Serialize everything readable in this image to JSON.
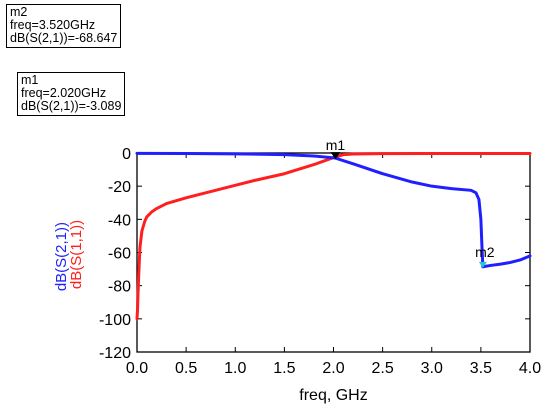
{
  "markers": [
    {
      "name": "m2",
      "freq_text": "freq=3.520GHz",
      "value_text": "dB(S(2,1))=-68.647"
    },
    {
      "name": "m1",
      "freq_text": "freq=2.020GHz",
      "value_text": "dB(S(2,1))=-3.089"
    }
  ],
  "chart_data": {
    "type": "line",
    "xlabel": "freq, GHz",
    "ylabel_parts": [
      "dB(S(2,1))",
      "dB(S(1,1))"
    ],
    "xlim": [
      0.0,
      4.0
    ],
    "ylim": [
      -120,
      0
    ],
    "x_ticks": [
      "0.0",
      "0.5",
      "1.0",
      "1.5",
      "2.0",
      "2.5",
      "3.0",
      "3.5",
      "4.0"
    ],
    "y_ticks": [
      "0",
      "-20",
      "-40",
      "-60",
      "-80",
      "-100",
      "-120"
    ],
    "grid": false,
    "series": [
      {
        "name": "dB(S(2,1))",
        "color": "#1f1fff",
        "x": [
          0.0,
          0.5,
          1.0,
          1.5,
          1.8,
          2.0,
          2.02,
          2.2,
          2.5,
          2.8,
          3.0,
          3.2,
          3.4,
          3.45,
          3.48,
          3.5,
          3.51,
          3.52,
          3.55,
          3.6,
          3.7,
          3.8,
          3.9,
          4.0
        ],
        "y": [
          -0.2,
          -0.3,
          -0.5,
          -1.0,
          -1.8,
          -2.9,
          -3.089,
          -6.5,
          -12.5,
          -17.5,
          -20.0,
          -21.5,
          -22.5,
          -24.0,
          -28.0,
          -40.0,
          -55.0,
          -68.647,
          -68.3,
          -67.8,
          -67.0,
          -66.0,
          -64.5,
          -62.0
        ]
      },
      {
        "name": "dB(S(1,1))",
        "color": "#ff1f1f",
        "x": [
          0.0,
          0.005,
          0.01,
          0.02,
          0.03,
          0.05,
          0.08,
          0.1,
          0.15,
          0.2,
          0.3,
          0.5,
          0.8,
          1.0,
          1.2,
          1.5,
          1.8,
          1.95,
          2.0,
          2.05,
          2.1,
          2.2,
          2.5,
          3.0,
          3.5,
          4.0
        ],
        "y": [
          -100.0,
          -95.0,
          -85.0,
          -70.0,
          -57.0,
          -47.0,
          -41.0,
          -38.5,
          -35.5,
          -33.5,
          -30.5,
          -27.0,
          -22.5,
          -19.5,
          -16.5,
          -12.5,
          -7.0,
          -3.8,
          -2.8,
          -1.8,
          -1.0,
          -0.6,
          -0.4,
          -0.3,
          -0.3,
          -0.3
        ]
      }
    ],
    "annotations": [
      {
        "label": "m1",
        "x": 2.02,
        "y": -3.089,
        "series": "dB(S(2,1))"
      },
      {
        "label": "m2",
        "x": 3.52,
        "y": -68.647,
        "series": "dB(S(2,1))"
      }
    ]
  }
}
